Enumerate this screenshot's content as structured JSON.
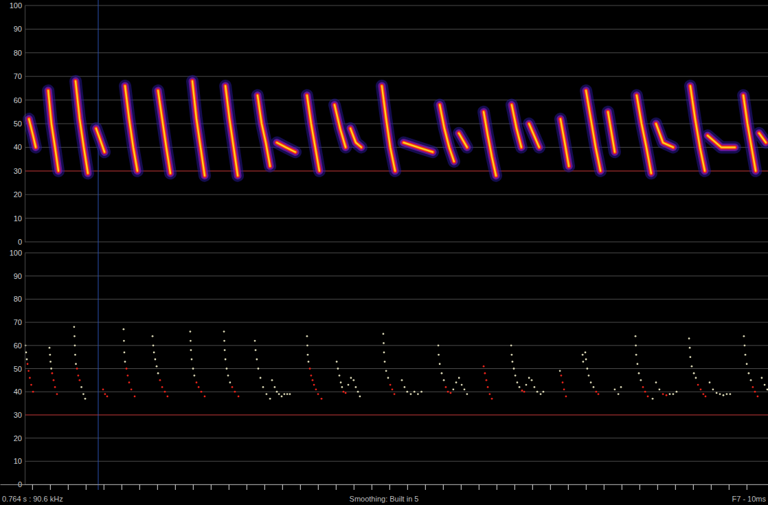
{
  "chart_data": [
    {
      "type": "line",
      "line_style": "glow",
      "xlim": [
        0,
        430
      ],
      "ylim": [
        0,
        100
      ],
      "yticks": [
        0,
        10,
        20,
        30,
        40,
        50,
        60,
        70,
        80,
        90,
        100
      ],
      "grid": true,
      "tick_labels": "y",
      "threshold": 30,
      "cursor": 55,
      "series": [
        {
          "color": "#ffd21a",
          "x": [
            16.2,
            18.5,
            20,
            null,
            27,
            28.8,
            30.8,
            32.7,
            null,
            42.3,
            44.6,
            46.9,
            49.2,
            null,
            53.8,
            56.2,
            58.5,
            null,
            70,
            72.3,
            74.6,
            76.9,
            null,
            88.5,
            90.8,
            93.1,
            95.4,
            null,
            107.7,
            110,
            112.3,
            114.6,
            null,
            126.2,
            128.5,
            130.8,
            133.1,
            null,
            144.2,
            146.5,
            148.8,
            151.2,
            null,
            155,
            160,
            165.4,
            null,
            171.9,
            174.2,
            176.5,
            178.8,
            null,
            187.3,
            190.4,
            193.5,
            null,
            196.2,
            199.2,
            202.3,
            null,
            213.8,
            216.2,
            218.5,
            221.2,
            null,
            226,
            234,
            242.3,
            null,
            246.2,
            248.8,
            251.5,
            254.2,
            null,
            256.9,
            261.5,
            null,
            270.8,
            273.1,
            275.4,
            277.7,
            null,
            286.5,
            289.2,
            291.9,
            null,
            296.2,
            301.9,
            null,
            313.8,
            316.2,
            318.5,
            null,
            328.1,
            330.8,
            333.5,
            336.2,
            null,
            340.4,
            344.2,
            null,
            356.5,
            359.2,
            361.9,
            364.6,
            null,
            367.3,
            371.2,
            376.9,
            null,
            386.5,
            389.2,
            391.9,
            394.6,
            null,
            396.2,
            403.8,
            411.5,
            null,
            416.2,
            418.5,
            420.8,
            423.1,
            null,
            425,
            428.8
          ],
          "values": [
            52,
            45,
            40,
            null,
            64,
            50,
            40,
            30,
            null,
            68,
            52,
            40,
            29,
            null,
            48,
            43,
            38,
            null,
            66,
            52,
            40,
            30,
            null,
            64,
            52,
            40,
            29,
            null,
            68,
            52,
            40,
            28,
            null,
            66,
            52,
            40,
            28,
            null,
            62,
            50,
            42,
            32,
            null,
            42,
            40,
            38,
            null,
            62,
            50,
            40,
            30,
            null,
            58,
            48,
            40,
            null,
            48,
            42,
            40,
            null,
            66,
            52,
            40,
            30,
            null,
            42,
            40,
            38,
            null,
            58,
            48,
            40,
            34,
            null,
            46,
            40,
            null,
            55,
            45,
            36,
            28,
            null,
            58,
            48,
            40,
            null,
            50,
            40,
            null,
            52,
            42,
            32,
            null,
            64,
            52,
            40,
            30,
            null,
            55,
            38,
            null,
            62,
            50,
            40,
            29,
            null,
            50,
            42,
            40,
            null,
            66,
            52,
            40,
            30,
            null,
            45,
            40,
            40,
            null,
            62,
            50,
            40,
            30,
            null,
            46,
            42
          ]
        }
      ]
    },
    {
      "type": "scatter",
      "marker": "dot",
      "xlim": [
        0,
        430
      ],
      "xticks": [
        18,
        28,
        38,
        48,
        58,
        68,
        78,
        88,
        98,
        108,
        118,
        128,
        138,
        148,
        158,
        168,
        178,
        188,
        198,
        208,
        218,
        228,
        238,
        248,
        258,
        268,
        278,
        288,
        298,
        308,
        318,
        328,
        338,
        348,
        358,
        368,
        378,
        388,
        398,
        408,
        418
      ],
      "ylim": [
        0,
        100
      ],
      "yticks": [
        0,
        10,
        20,
        30,
        40,
        50,
        60,
        70,
        80,
        90,
        100
      ],
      "grid": true,
      "tick_labels": "y",
      "threshold": 30,
      "cursor": 55,
      "annotations": [
        "0.764 s : 90.6 kHz",
        "Smoothing: Built in 5",
        "F7 - 10ms"
      ],
      "series": [
        {
          "color": "#d9d6b4",
          "x": [
            14.2,
            14.6,
            15,
            27.7,
            28,
            28.3,
            28.7,
            41.5,
            41.7,
            41.9,
            42.1,
            42.5,
            45.6,
            46.7,
            47.7,
            69.2,
            69.4,
            69.6,
            70,
            85.4,
            85.8,
            86.2,
            86.9,
            87.7,
            88.5,
            106.5,
            106.7,
            106.9,
            107.3,
            108.1,
            108.8,
            125.4,
            125.6,
            125.8,
            126.2,
            126.9,
            127.7,
            128.8,
            142.7,
            143.1,
            143.8,
            144.6,
            145.8,
            147.3,
            149.2,
            151.2,
            152.3,
            153.8,
            155,
            156.2,
            157.7,
            159.2,
            160.8,
            162.3,
            171.9,
            172.1,
            172.3,
            172.7,
            188.5,
            189.2,
            190,
            190.8,
            191.5,
            195,
            196.5,
            198,
            199.2,
            200.4,
            201.5,
            214.6,
            214.8,
            215,
            215.4,
            216.2,
            217.3,
            225,
            226.5,
            228,
            230,
            232,
            234,
            236,
            245.4,
            245.6,
            246.2,
            247.3,
            248.5,
            253.8,
            255.4,
            257,
            258.5,
            260,
            261.5,
            286.2,
            286.5,
            286.9,
            287.7,
            288.5,
            289.6,
            290.8,
            294.6,
            296.2,
            297.7,
            299.2,
            300.8,
            302.7,
            304.2,
            313.5,
            326.2,
            326.5,
            327.7,
            328.1,
            328.8,
            329.6,
            330.8,
            332.3,
            344.2,
            346.2,
            347.7,
            355.8,
            356,
            356.2,
            356.9,
            357.7,
            358.8,
            365.4,
            367.3,
            369.2,
            375,
            376.9,
            378.8,
            385.8,
            386.2,
            386.5,
            387.3,
            388.5,
            389.6,
            397.3,
            399.2,
            401.2,
            403.1,
            405,
            406.9,
            408.8,
            416.5,
            416.9,
            417.3,
            418.1,
            419.2,
            420.4,
            426.5,
            428.1,
            429.6
          ],
          "values": [
            60,
            57,
            54,
            59,
            56,
            53,
            50,
            68,
            64,
            60,
            56,
            52,
            42,
            39,
            37,
            67,
            62,
            57,
            53,
            64,
            60,
            57,
            54,
            51,
            48,
            66,
            62,
            58,
            54,
            50,
            47,
            66,
            62,
            58,
            54,
            50,
            47,
            44,
            62,
            58,
            54,
            50,
            46,
            42,
            39,
            37,
            45,
            42,
            40,
            39,
            38,
            39,
            39,
            39,
            64,
            60,
            56,
            53,
            53,
            50,
            47,
            44,
            42,
            43,
            46,
            45,
            42,
            40,
            38,
            65,
            61,
            57,
            53,
            49,
            46,
            45,
            42,
            40,
            39,
            40,
            39,
            40,
            60,
            56,
            52,
            48,
            45,
            41,
            44,
            46,
            43,
            41,
            39,
            60,
            56,
            53,
            50,
            47,
            44,
            42,
            43,
            46,
            45,
            42,
            40,
            39,
            40,
            49,
            56,
            53,
            57,
            54,
            50,
            47,
            44,
            42,
            41,
            39,
            42,
            64,
            60,
            56,
            52,
            48,
            45,
            37,
            44,
            41,
            39,
            39,
            40,
            63,
            59,
            55,
            51,
            48,
            46,
            44,
            41,
            39.5,
            39,
            38.5,
            39,
            39,
            64,
            60,
            56,
            52,
            48,
            45,
            46,
            43,
            41
          ]
        },
        {
          "color": "#e8231a",
          "x": [
            15.4,
            16,
            16.7,
            17.5,
            18.5,
            29.2,
            30,
            30.8,
            31.9,
            43.1,
            43.8,
            44.6,
            57.7,
            58.8,
            60,
            70.8,
            71.5,
            72.3,
            73.5,
            75.4,
            89.6,
            90.8,
            92.3,
            93.8,
            110,
            111.2,
            112.7,
            114.6,
            130,
            131.5,
            133.5,
            173.5,
            174.2,
            175,
            175.8,
            176.9,
            178.1,
            180,
            192.3,
            193.5,
            218.5,
            219.6,
            220.8,
            249.6,
            250.8,
            252.3,
            270.8,
            271.5,
            272.3,
            273.1,
            274.2,
            275.4,
            292.3,
            293.5,
            314.2,
            315,
            315.8,
            316.9,
            333.8,
            335,
            360,
            361.2,
            362.7,
            371.2,
            373.1,
            390.8,
            392.3,
            393.8,
            395,
            421.5,
            422.7,
            424.2
          ],
          "values": [
            52,
            49,
            46,
            43,
            40,
            48,
            45,
            42,
            39,
            50,
            47,
            45,
            41,
            39,
            38,
            50,
            47,
            44,
            41,
            38,
            45,
            42,
            40,
            38,
            44,
            42,
            40,
            38,
            42,
            40,
            38,
            50,
            47,
            45,
            43,
            41,
            39,
            37,
            40,
            39.5,
            43,
            41,
            39,
            42,
            40,
            39.5,
            51,
            48,
            45,
            42,
            39,
            37,
            40.5,
            40,
            47,
            44,
            41,
            38,
            40,
            39,
            42,
            40,
            38,
            39,
            38.5,
            43,
            41,
            39,
            38,
            42,
            40,
            38
          ]
        }
      ]
    }
  ]
}
